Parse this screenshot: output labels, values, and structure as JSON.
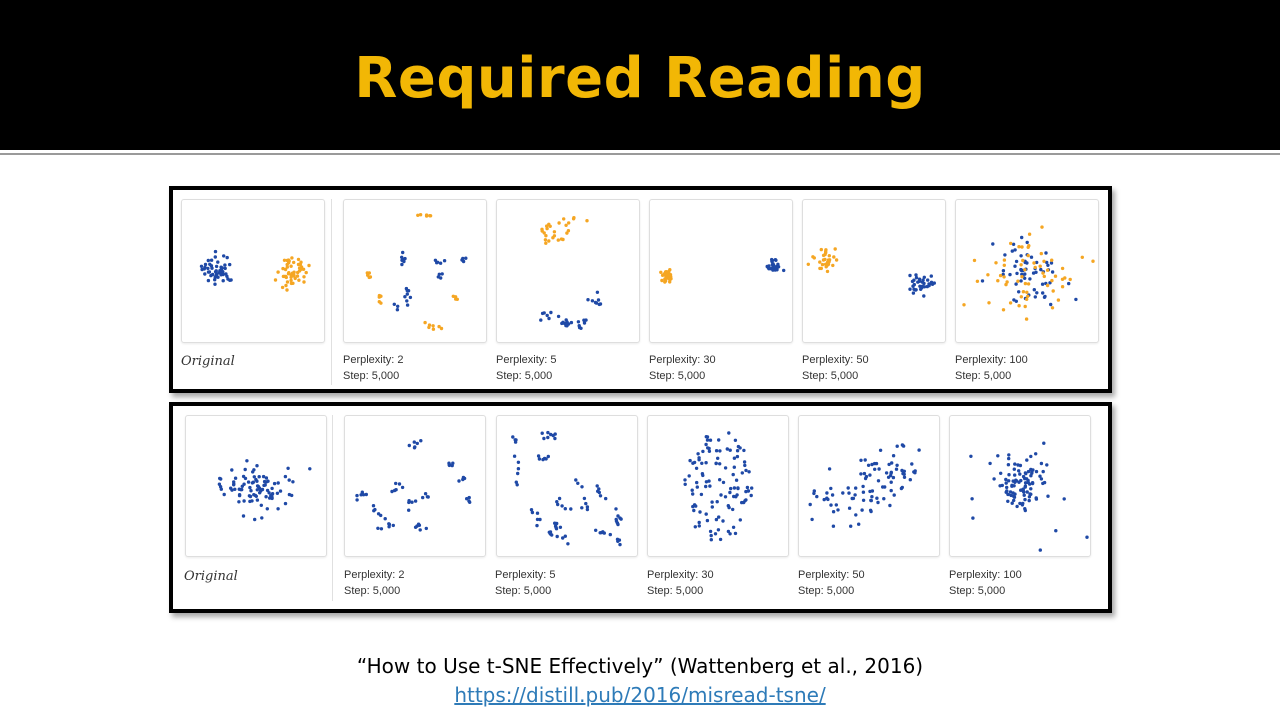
{
  "slide": {
    "title": "Required Reading",
    "citation": "“How to Use t-SNE Effectively” (Wattenberg et al., 2016)",
    "link": "https://distill.pub/2016/misread-tsne/"
  },
  "colors": {
    "title": "#f2b705",
    "blue": "#1f49a6",
    "orange": "#f5a623",
    "link": "#2e7bb8"
  },
  "figures": [
    {
      "original_label": "Original",
      "panels": [
        {
          "perplexity_label": "Perplexity: 2",
          "step_label": "Step: 5,000"
        },
        {
          "perplexity_label": "Perplexity: 5",
          "step_label": "Step: 5,000"
        },
        {
          "perplexity_label": "Perplexity: 30",
          "step_label": "Step: 5,000"
        },
        {
          "perplexity_label": "Perplexity: 50",
          "step_label": "Step: 5,000"
        },
        {
          "perplexity_label": "Perplexity: 100",
          "step_label": "Step: 5,000"
        }
      ]
    },
    {
      "original_label": "Original",
      "panels": [
        {
          "perplexity_label": "Perplexity: 2",
          "step_label": "Step: 5,000"
        },
        {
          "perplexity_label": "Perplexity: 5",
          "step_label": "Step: 5,000"
        },
        {
          "perplexity_label": "Perplexity: 30",
          "step_label": "Step: 5,000"
        },
        {
          "perplexity_label": "Perplexity: 50",
          "step_label": "Step: 5,000"
        },
        {
          "perplexity_label": "Perplexity: 100",
          "step_label": "Step: 5,000"
        }
      ]
    }
  ]
}
